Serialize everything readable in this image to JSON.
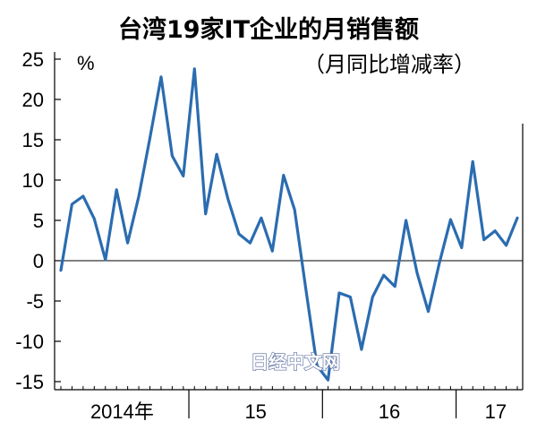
{
  "chart_data": {
    "type": "line",
    "title": "台湾19家IT企业的月销售额",
    "subtitle": "（月同比增减率）",
    "ylabel": "%",
    "xlabel": "",
    "ylim": [
      -16,
      27
    ],
    "yticks": [
      25,
      20,
      15,
      10,
      5,
      0,
      -5,
      -10,
      -15
    ],
    "year_labels": [
      "2014年",
      "15",
      "16",
      "17"
    ],
    "grid": false,
    "zero_line": true,
    "line_color": "#2b6cb0",
    "series": [
      {
        "months": [
          "2014-01",
          "2014-02",
          "2014-03",
          "2014-04",
          "2014-05",
          "2014-06",
          "2014-07",
          "2014-08",
          "2014-09",
          "2014-10",
          "2014-11",
          "2014-12",
          "2015-01",
          "2015-02",
          "2015-03",
          "2015-04",
          "2015-05",
          "2015-06",
          "2015-07",
          "2015-08",
          "2015-09",
          "2015-10",
          "2015-11",
          "2015-12",
          "2016-01",
          "2016-02",
          "2016-03",
          "2016-04",
          "2016-05",
          "2016-06",
          "2016-07",
          "2016-08",
          "2016-09",
          "2016-10",
          "2016-11",
          "2016-12",
          "2017-01",
          "2017-02",
          "2017-03",
          "2017-04",
          "2017-05",
          "2017-06"
        ],
        "values": [
          -1.2,
          7.0,
          8.0,
          5.2,
          0.1,
          8.8,
          2.2,
          8.0,
          15.2,
          22.8,
          13.0,
          10.5,
          23.8,
          5.8,
          13.2,
          7.7,
          3.3,
          2.2,
          5.3,
          1.2,
          10.6,
          6.3,
          -3.5,
          -13.0,
          -14.8,
          -4.0,
          -4.5,
          -11.0,
          -4.5,
          -1.8,
          -3.2,
          5.0,
          -1.5,
          -6.3,
          -0.3,
          5.1,
          1.6,
          12.3,
          2.6,
          3.7,
          1.9,
          5.3
        ]
      }
    ]
  },
  "watermark": "日经中文网"
}
